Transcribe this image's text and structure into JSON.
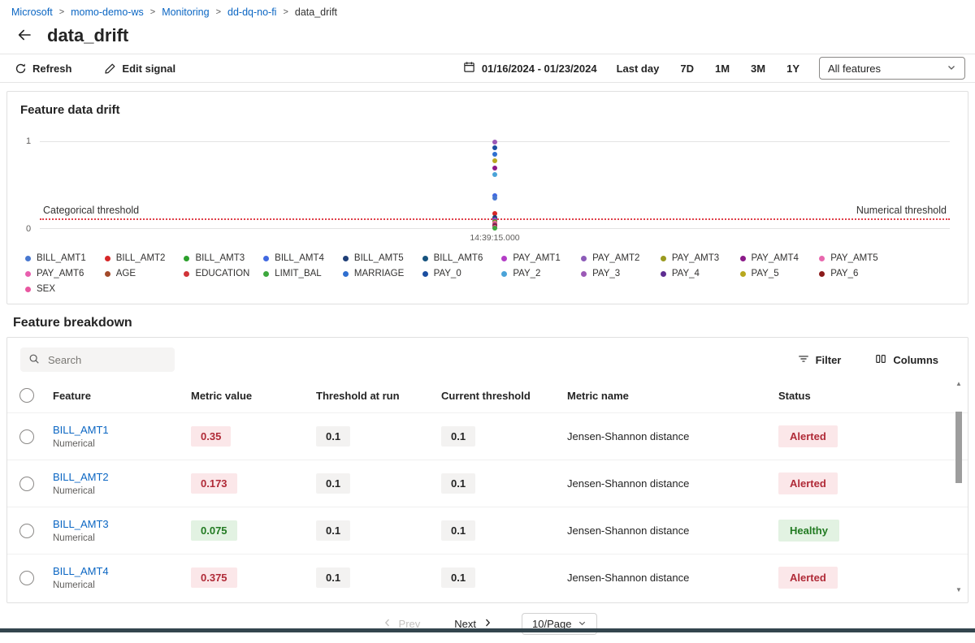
{
  "breadcrumb": {
    "separator": ">",
    "items": [
      {
        "label": "Microsoft",
        "link": true
      },
      {
        "label": "momo-demo-ws",
        "link": true
      },
      {
        "label": "Monitoring",
        "link": true
      },
      {
        "label": "dd-dq-no-fi",
        "link": true
      },
      {
        "label": "data_drift",
        "link": false
      }
    ]
  },
  "page": {
    "title": "data_drift"
  },
  "toolbar": {
    "refresh_label": "Refresh",
    "edit_signal_label": "Edit signal",
    "date_range": "01/16/2024 - 01/23/2024",
    "range_buttons": [
      "Last day",
      "7D",
      "1M",
      "3M",
      "1Y"
    ],
    "feature_filter_value": "All features"
  },
  "chart": {
    "type": "scatter",
    "title": "Feature data drift",
    "y_ticks": [
      "1",
      "0"
    ],
    "ylim": [
      0,
      1
    ],
    "x_tick": "14:39:15.000",
    "categorical_threshold_label": "Categorical threshold",
    "numerical_threshold_label": "Numerical threshold",
    "threshold_value": 0.1,
    "threshold_color": "#e0404a",
    "legend": [
      {
        "name": "BILL_AMT1",
        "color": "#4878d0"
      },
      {
        "name": "BILL_AMT2",
        "color": "#d62728"
      },
      {
        "name": "BILL_AMT3",
        "color": "#2ca02c"
      },
      {
        "name": "BILL_AMT4",
        "color": "#4169e1"
      },
      {
        "name": "BILL_AMT5",
        "color": "#1f3f77"
      },
      {
        "name": "BILL_AMT6",
        "color": "#16537e"
      },
      {
        "name": "PAY_AMT1",
        "color": "#b33dc6"
      },
      {
        "name": "PAY_AMT2",
        "color": "#8c5bb8"
      },
      {
        "name": "PAY_AMT3",
        "color": "#9a9a1f"
      },
      {
        "name": "PAY_AMT4",
        "color": "#8b1a89"
      },
      {
        "name": "PAY_AMT5",
        "color": "#e868ae"
      },
      {
        "name": "PAY_AMT6",
        "color": "#e85fae"
      },
      {
        "name": "AGE",
        "color": "#a34a2a"
      },
      {
        "name": "EDUCATION",
        "color": "#d13438"
      },
      {
        "name": "LIMIT_BAL",
        "color": "#3da83d"
      },
      {
        "name": "MARRIAGE",
        "color": "#2f6fd0"
      },
      {
        "name": "PAY_0",
        "color": "#1b4ea0"
      },
      {
        "name": "PAY_2",
        "color": "#4aa3d8"
      },
      {
        "name": "PAY_3",
        "color": "#9b59b6"
      },
      {
        "name": "PAY_4",
        "color": "#5e2d91"
      },
      {
        "name": "PAY_5",
        "color": "#b8a81f"
      },
      {
        "name": "PAY_6",
        "color": "#8b1a1a"
      },
      {
        "name": "SEX",
        "color": "#e957a0"
      }
    ],
    "points": [
      {
        "feature": "PAY_3",
        "value": 1.0
      },
      {
        "feature": "PAY_0",
        "value": 0.93
      },
      {
        "feature": "MARRIAGE",
        "value": 0.86
      },
      {
        "feature": "PAY_5",
        "value": 0.78
      },
      {
        "feature": "PAY_AMT4",
        "value": 0.7
      },
      {
        "feature": "PAY_2",
        "value": 0.62
      },
      {
        "feature": "BILL_AMT4",
        "value": 0.375
      },
      {
        "feature": "BILL_AMT1",
        "value": 0.35
      },
      {
        "feature": "BILL_AMT2",
        "value": 0.173
      },
      {
        "feature": "BILL_AMT5",
        "value": 0.12
      },
      {
        "feature": "BILL_AMT6",
        "value": 0.1
      },
      {
        "feature": "PAY_AMT1",
        "value": 0.09
      },
      {
        "feature": "PAY_AMT2",
        "value": 0.08
      },
      {
        "feature": "BILL_AMT3",
        "value": 0.075
      },
      {
        "feature": "PAY_AMT3",
        "value": 0.065
      },
      {
        "feature": "PAY_AMT5",
        "value": 0.055
      },
      {
        "feature": "PAY_AMT6",
        "value": 0.045
      },
      {
        "feature": "AGE",
        "value": 0.04
      },
      {
        "feature": "EDUCATION",
        "value": 0.03
      },
      {
        "feature": "PAY_4",
        "value": 0.025
      },
      {
        "feature": "PAY_6",
        "value": 0.02
      },
      {
        "feature": "SEX",
        "value": 0.012
      },
      {
        "feature": "LIMIT_BAL",
        "value": 0.0
      }
    ]
  },
  "breakdown": {
    "title": "Feature breakdown",
    "search_placeholder": "Search",
    "filter_label": "Filter",
    "columns_label": "Columns",
    "table": {
      "columns": [
        "Feature",
        "Metric value",
        "Threshold at run",
        "Current threshold",
        "Metric name",
        "Status"
      ],
      "rows": [
        {
          "feature": "BILL_AMT1",
          "type": "Numerical",
          "metric_value": "0.35",
          "state": "alerted",
          "threshold_at_run": "0.1",
          "current_threshold": "0.1",
          "metric_name": "Jensen-Shannon distance",
          "status": "Alerted"
        },
        {
          "feature": "BILL_AMT2",
          "type": "Numerical",
          "metric_value": "0.173",
          "state": "alerted",
          "threshold_at_run": "0.1",
          "current_threshold": "0.1",
          "metric_name": "Jensen-Shannon distance",
          "status": "Alerted"
        },
        {
          "feature": "BILL_AMT3",
          "type": "Numerical",
          "metric_value": "0.075",
          "state": "healthy",
          "threshold_at_run": "0.1",
          "current_threshold": "0.1",
          "metric_name": "Jensen-Shannon distance",
          "status": "Healthy"
        },
        {
          "feature": "BILL_AMT4",
          "type": "Numerical",
          "metric_value": "0.375",
          "state": "alerted",
          "threshold_at_run": "0.1",
          "current_threshold": "0.1",
          "metric_name": "Jensen-Shannon distance",
          "status": "Alerted"
        }
      ]
    },
    "pagination": {
      "prev": "Prev",
      "next": "Next",
      "page_size": "10/Page"
    }
  },
  "colors": {
    "link": "#0b66c3",
    "alert_bg": "#fbe7e9",
    "alert_text": "#b02a37",
    "healthy_bg": "#e2f2e2",
    "healthy_text": "#217a21",
    "neutral_badge_bg": "#f3f2f1",
    "threshold_line": "#e0404a"
  }
}
